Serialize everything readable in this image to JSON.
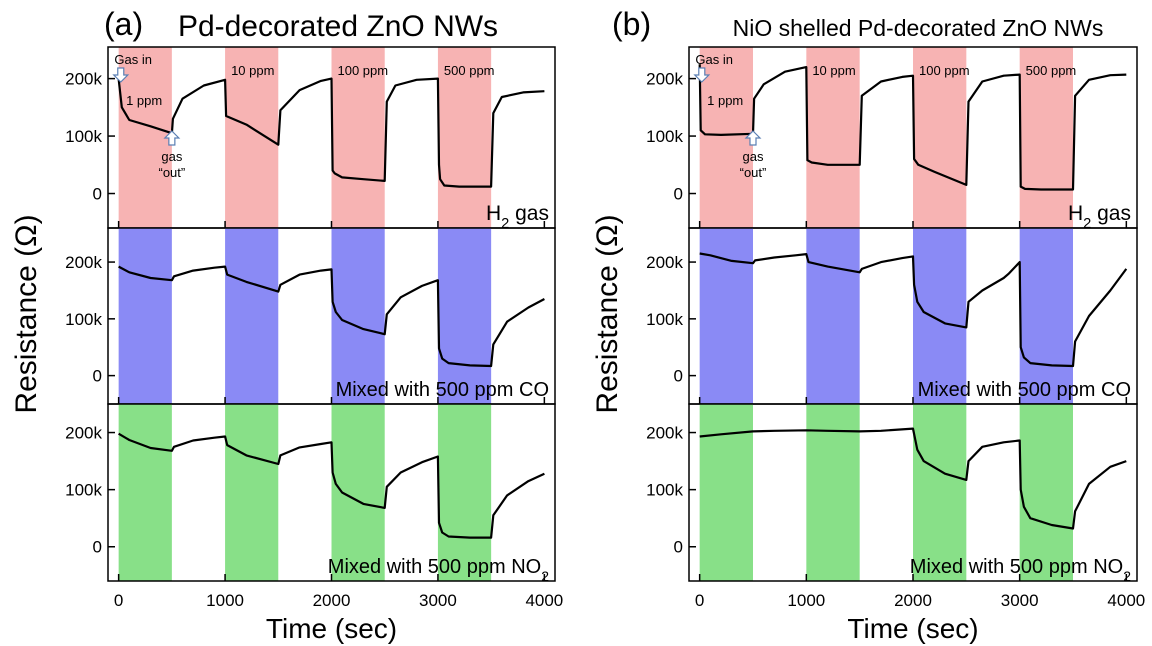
{
  "chart_data": [
    {
      "type": "line",
      "panel_label": "(a)",
      "title": "Pd-decorated ZnO NWs",
      "xlabel": "Time (sec)",
      "ylabel": "Resistance (Ω)",
      "xlim": [
        -100,
        4100
      ],
      "x_ticks": [
        "0",
        "1000",
        "2000",
        "3000",
        "4000"
      ],
      "grid": false,
      "subplots": [
        {
          "shade_color": "#f7b3b3",
          "annotation": "H₂ gas",
          "concentration_labels": [
            "1 ppm",
            "10 ppm",
            "100 ppm",
            "500 ppm"
          ],
          "arrow_labels": {
            "gas_in": "Gas in",
            "gas_out_1": "gas",
            "gas_out_2": "“out”"
          },
          "ylim": [
            -60000,
            255000
          ],
          "y_ticks": [
            "0",
            "100k",
            "200k"
          ],
          "series": [
            {
              "x": [
                0,
                30,
                100,
                300,
                500,
                510,
                600,
                800,
                1000,
                1010,
                1200,
                1500,
                1520,
                1700,
                1900,
                2000,
                2010,
                2030,
                2100,
                2300,
                2500,
                2520,
                2600,
                2800,
                3000,
                3010,
                3020,
                3060,
                3200,
                3500,
                3520,
                3600,
                3800,
                4000
              ],
              "y": [
                200000,
                150000,
                128000,
                117000,
                105000,
                130000,
                165000,
                188000,
                198000,
                135000,
                120000,
                85000,
                145000,
                180000,
                196000,
                200000,
                40000,
                35000,
                28000,
                25000,
                22000,
                160000,
                188000,
                198000,
                200000,
                50000,
                25000,
                14000,
                12000,
                12000,
                140000,
                168000,
                176000,
                178000
              ]
            }
          ]
        },
        {
          "shade_color": "#8a8af5",
          "annotation": "Mixed with 500 ppm CO",
          "ylim": [
            -50000,
            260000
          ],
          "y_ticks": [
            "0",
            "100k",
            "200k"
          ],
          "series": [
            {
              "x": [
                0,
                100,
                300,
                500,
                520,
                700,
                900,
                1000,
                1020,
                1200,
                1500,
                1520,
                1700,
                1900,
                2000,
                2010,
                2040,
                2100,
                2300,
                2500,
                2520,
                2650,
                2850,
                3000,
                3010,
                3040,
                3100,
                3300,
                3500,
                3520,
                3650,
                3850,
                4000
              ],
              "y": [
                192000,
                182000,
                172000,
                168000,
                175000,
                185000,
                190000,
                192000,
                178000,
                165000,
                148000,
                160000,
                178000,
                185000,
                187000,
                130000,
                112000,
                98000,
                82000,
                73000,
                108000,
                138000,
                158000,
                168000,
                48000,
                30000,
                22000,
                18000,
                17000,
                55000,
                95000,
                120000,
                135000
              ]
            }
          ]
        },
        {
          "shade_color": "#88e088",
          "annotation": "Mixed with 500 ppm NO₂",
          "ylim": [
            -60000,
            250000
          ],
          "y_ticks": [
            "0",
            "100k",
            "200k"
          ],
          "series": [
            {
              "x": [
                0,
                100,
                300,
                500,
                520,
                700,
                900,
                1000,
                1020,
                1200,
                1500,
                1520,
                1700,
                1900,
                2000,
                2010,
                2040,
                2100,
                2300,
                2500,
                2520,
                2650,
                2850,
                3000,
                3010,
                3040,
                3100,
                3300,
                3500,
                3520,
                3650,
                3850,
                4000
              ],
              "y": [
                198000,
                187000,
                173000,
                168000,
                175000,
                186000,
                191000,
                193000,
                178000,
                160000,
                145000,
                160000,
                174000,
                180000,
                183000,
                130000,
                110000,
                95000,
                75000,
                68000,
                105000,
                130000,
                148000,
                158000,
                42000,
                25000,
                18000,
                16000,
                16000,
                55000,
                90000,
                115000,
                128000
              ]
            }
          ]
        }
      ]
    },
    {
      "type": "line",
      "panel_label": "(b)",
      "title": "NiO shelled Pd-decorated ZnO NWs",
      "xlabel": "Time (sec)",
      "ylabel": "Resistance (Ω)",
      "xlim": [
        -100,
        4100
      ],
      "x_ticks": [
        "0",
        "1000",
        "2000",
        "3000",
        "4000"
      ],
      "grid": false,
      "subplots": [
        {
          "shade_color": "#f7b3b3",
          "annotation": "H₂ gas",
          "concentration_labels": [
            "1 ppm",
            "10 ppm",
            "100 ppm",
            "500 ppm"
          ],
          "arrow_labels": {
            "gas_in": "Gas in",
            "gas_out_1": "gas",
            "gas_out_2": "“out”"
          },
          "ylim": [
            -60000,
            255000
          ],
          "y_ticks": [
            "0",
            "100k",
            "200k"
          ],
          "series": [
            {
              "x": [
                0,
                10,
                50,
                200,
                500,
                510,
                600,
                800,
                1000,
                1010,
                1050,
                1200,
                1500,
                1520,
                1700,
                1900,
                2000,
                2010,
                2050,
                2200,
                2500,
                2520,
                2650,
                2850,
                3000,
                3010,
                3050,
                3200,
                3500,
                3520,
                3650,
                3850,
                4000
              ],
              "y": [
                225000,
                110000,
                103000,
                102000,
                104000,
                165000,
                190000,
                212000,
                220000,
                58000,
                54000,
                50000,
                50000,
                170000,
                195000,
                203000,
                205000,
                60000,
                50000,
                38000,
                15000,
                160000,
                195000,
                205000,
                207000,
                12000,
                8000,
                7000,
                7000,
                170000,
                198000,
                206000,
                207000
              ]
            }
          ]
        },
        {
          "shade_color": "#8a8af5",
          "annotation": "Mixed with 500 ppm CO",
          "ylim": [
            -50000,
            260000
          ],
          "y_ticks": [
            "0",
            "100k",
            "200k"
          ],
          "series": [
            {
              "x": [
                0,
                100,
                300,
                500,
                520,
                700,
                900,
                1000,
                1020,
                1200,
                1500,
                1520,
                1700,
                1900,
                2000,
                2010,
                2040,
                2100,
                2300,
                2500,
                2520,
                2650,
                2850,
                2900,
                3000,
                3010,
                3040,
                3100,
                3300,
                3500,
                3520,
                3650,
                3850,
                4000
              ],
              "y": [
                215000,
                212000,
                202000,
                198000,
                203000,
                208000,
                212000,
                214000,
                200000,
                192000,
                182000,
                188000,
                200000,
                207000,
                210000,
                160000,
                130000,
                112000,
                92000,
                85000,
                130000,
                150000,
                172000,
                180000,
                200000,
                50000,
                32000,
                22000,
                18000,
                17000,
                60000,
                105000,
                150000,
                188000
              ]
            }
          ]
        },
        {
          "shade_color": "#88e088",
          "annotation": "Mixed with 500 ppm NO₂",
          "ylim": [
            -60000,
            250000
          ],
          "y_ticks": [
            "0",
            "100k",
            "200k"
          ],
          "series": [
            {
              "x": [
                0,
                200,
                500,
                700,
                1000,
                1200,
                1500,
                1700,
                2000,
                2040,
                2100,
                2300,
                2500,
                2520,
                2650,
                2850,
                3000,
                3010,
                3040,
                3100,
                3300,
                3500,
                3520,
                3650,
                3850,
                4000
              ],
              "y": [
                193000,
                197000,
                202000,
                203000,
                204000,
                203000,
                202000,
                203000,
                207000,
                170000,
                150000,
                128000,
                117000,
                150000,
                175000,
                183000,
                186000,
                100000,
                70000,
                50000,
                38000,
                32000,
                62000,
                110000,
                140000,
                150000
              ]
            }
          ]
        }
      ]
    }
  ]
}
